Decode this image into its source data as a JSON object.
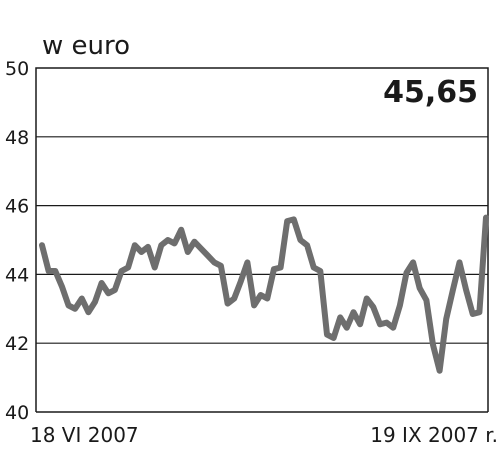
{
  "chart_data": {
    "type": "line",
    "unit_label": "w euro",
    "last_value_label": "45,65",
    "ylim": [
      40,
      50
    ],
    "yticks": [
      40,
      42,
      44,
      46,
      48,
      50
    ],
    "grid": true,
    "x_start_label": "18 VI 2007",
    "x_end_label": "19 IX 2007 r.",
    "line_color": "#6e6e6e",
    "values": [
      44.85,
      44.1,
      44.1,
      43.65,
      43.1,
      43.0,
      43.3,
      42.9,
      43.2,
      43.75,
      43.45,
      43.55,
      44.1,
      44.2,
      44.85,
      44.65,
      44.8,
      44.2,
      44.85,
      45.0,
      44.9,
      45.3,
      44.65,
      44.95,
      44.75,
      44.55,
      44.35,
      44.25,
      43.15,
      43.3,
      43.8,
      44.35,
      43.1,
      43.4,
      43.3,
      44.15,
      44.2,
      45.55,
      45.6,
      45.0,
      44.85,
      44.2,
      44.1,
      42.25,
      42.15,
      42.75,
      42.45,
      42.9,
      42.55,
      43.3,
      43.05,
      42.55,
      42.6,
      42.45,
      43.1,
      44.05,
      44.35,
      43.6,
      43.25,
      41.95,
      41.2,
      42.7,
      43.55,
      44.35,
      43.55,
      42.85,
      42.9,
      45.65
    ]
  }
}
